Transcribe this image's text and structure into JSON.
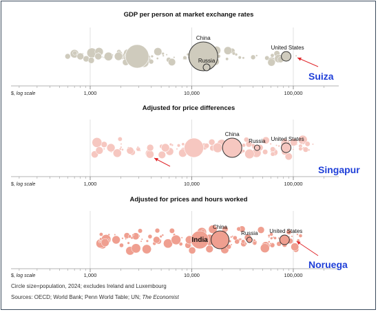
{
  "chart_data": {
    "type": "scatter",
    "x_scale": "log",
    "xlim": [
      500,
      160000
    ],
    "x_ticks": [
      "1,000",
      "10,000",
      "100,000"
    ],
    "x_unit_label": "$, log scale",
    "encoding": "circle size = population",
    "panels": [
      {
        "title": "GDP per person at market exchange rates",
        "color": "#cfcbbd",
        "labelled": [
          {
            "label": "China",
            "x": 13000
          },
          {
            "label": "Russia",
            "x": 14000
          },
          {
            "label": "United States",
            "x": 85000
          }
        ],
        "annotation": {
          "text": "Suiza",
          "x": 100000
        }
      },
      {
        "title": "Adjusted for price differences",
        "color": "#f6c7c0",
        "labelled": [
          {
            "label": "China",
            "x": 25000
          },
          {
            "label": "Russia",
            "x": 44000
          },
          {
            "label": "United States",
            "x": 85000
          }
        ],
        "annotation": {
          "text": "Singapur",
          "x": 150000
        }
      },
      {
        "title": "Adjusted for prices and hours worked",
        "color": "#ef9f90",
        "labelled": [
          {
            "label": "India",
            "x": 12000
          },
          {
            "label": "China",
            "x": 19000
          },
          {
            "label": "Russia",
            "x": 37000
          },
          {
            "label": "United States",
            "x": 82000
          }
        ],
        "annotation": {
          "text": "Noruega",
          "x": 98000
        }
      }
    ]
  },
  "footnote_1": "Circle size=population, 2024; excludes Ireland and Luxembourg",
  "footnote_2_prefix": "Sources: OECD; World Bank; Penn World Table; UN; ",
  "footnote_2_italic": "The Economist"
}
